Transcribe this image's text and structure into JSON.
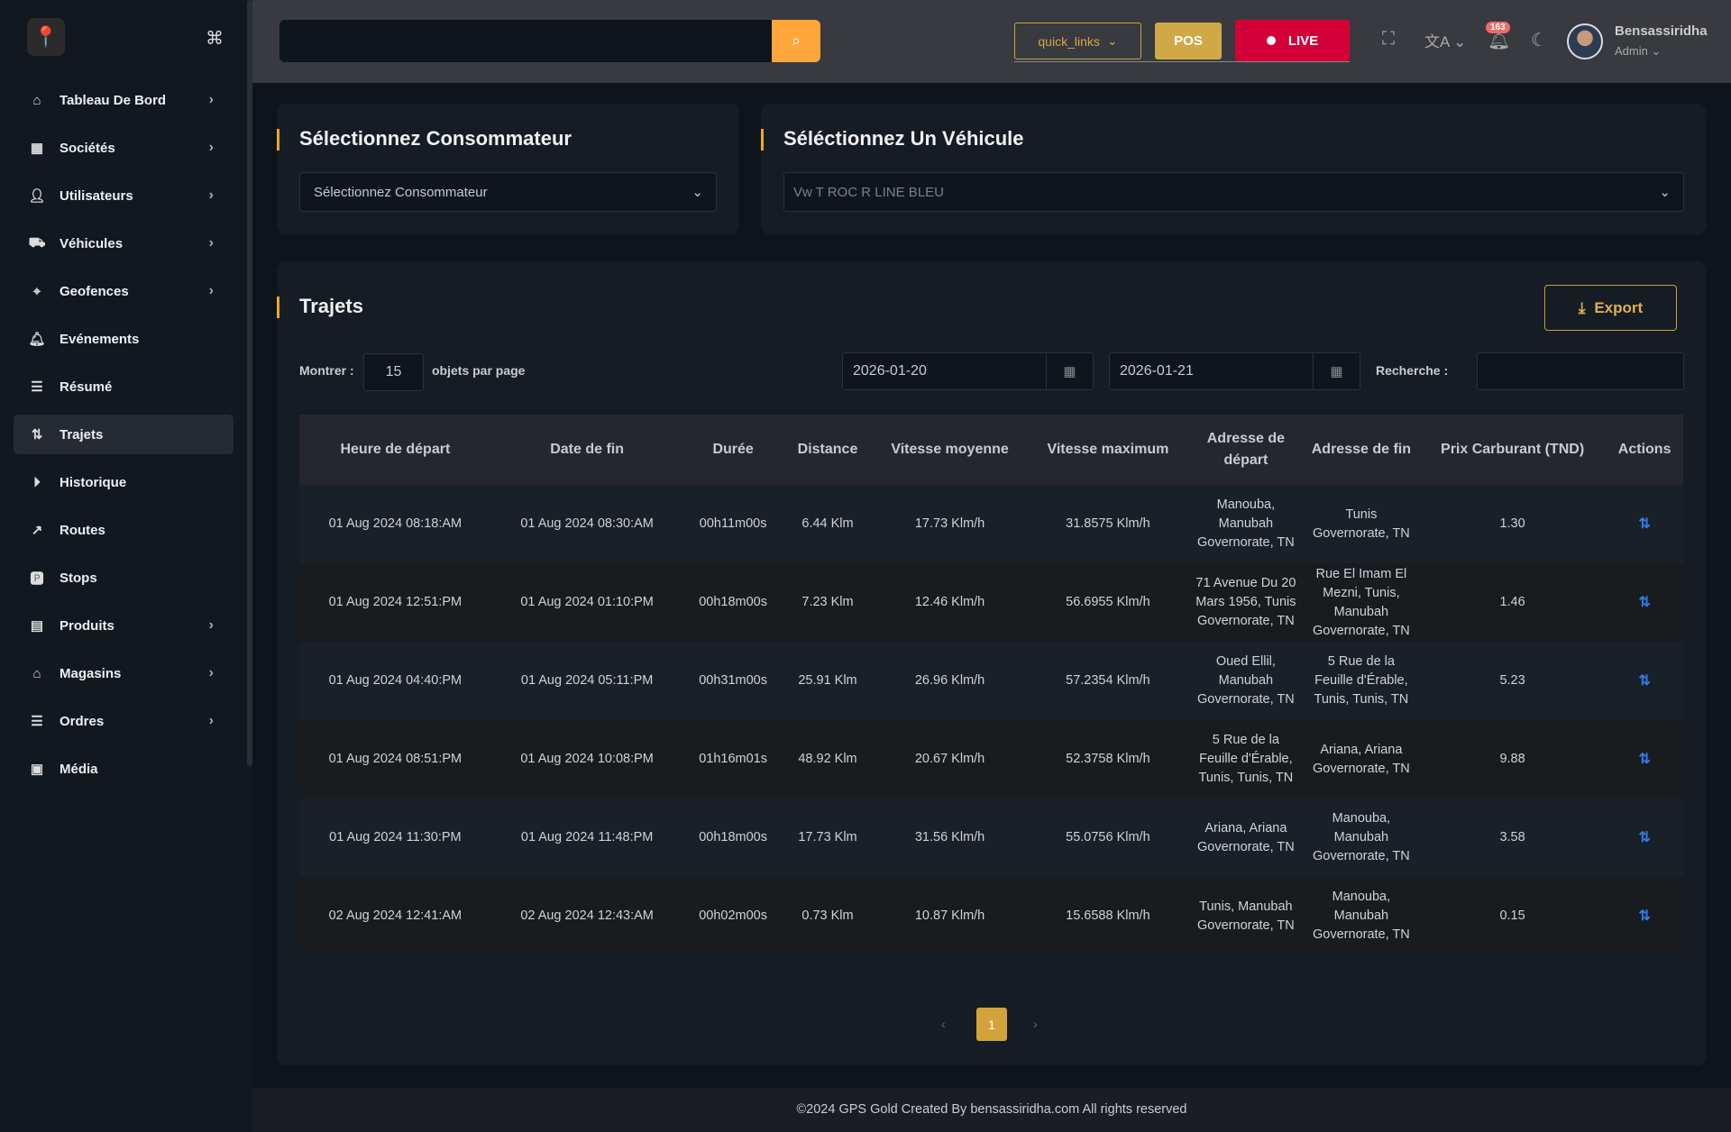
{
  "sidebar": {
    "items": [
      {
        "label": "Tableau De Bord",
        "icon": "home-icon",
        "chevron": true
      },
      {
        "label": "Sociétés",
        "icon": "building-icon",
        "chevron": true
      },
      {
        "label": "Utilisateurs",
        "icon": "users-icon",
        "chevron": true
      },
      {
        "label": "Véhicules",
        "icon": "car-icon",
        "chevron": true
      },
      {
        "label": "Geofences",
        "icon": "map-pin-icon",
        "chevron": true
      },
      {
        "label": "Evénements",
        "icon": "bell-icon",
        "chevron": false
      },
      {
        "label": "Résumé",
        "icon": "list-icon",
        "chevron": false
      },
      {
        "label": "Trajets",
        "icon": "route-icon",
        "chevron": false,
        "active": true
      },
      {
        "label": "Historique",
        "icon": "play-circle-icon",
        "chevron": false
      },
      {
        "label": "Routes",
        "icon": "path-icon",
        "chevron": false
      },
      {
        "label": "Stops",
        "icon": "parking-icon",
        "chevron": false
      },
      {
        "label": "Produits",
        "icon": "archive-icon",
        "chevron": true
      },
      {
        "label": "Magasins",
        "icon": "store-icon",
        "chevron": true
      },
      {
        "label": "Ordres",
        "icon": "list-icon",
        "chevron": true
      },
      {
        "label": "Média",
        "icon": "image-icon",
        "chevron": false
      }
    ]
  },
  "topbar": {
    "quick_links": "quick_links",
    "pos": "POS",
    "live": "LIVE",
    "notifications": "163",
    "user_name": "Bensassiridha",
    "user_role": "Admin"
  },
  "consumer": {
    "title": "Sélectionnez Consommateur",
    "value": "Sélectionnez Consommateur"
  },
  "vehicle": {
    "title": "Séléctionnez Un Véhicule",
    "value": "Vw T ROC R LINE BLEU"
  },
  "trips": {
    "title": "Trajets",
    "export": "Export",
    "show_label": "Montrer :",
    "per_page": "15",
    "per_page_suffix": "objets par page",
    "date_from": "2026-01-20",
    "date_to": "2026-01-21",
    "search_label": "Recherche :",
    "columns": [
      "Heure de départ",
      "Date de fin",
      "Durée",
      "Distance",
      "Vitesse moyenne",
      "Vitesse maximum",
      "Adresse de départ",
      "Adresse de fin",
      "Prix Carburant (TND)",
      "Actions"
    ],
    "rows": [
      [
        "01 Aug 2024 08:18:AM",
        "01 Aug 2024 08:30:AM",
        "00h11m00s",
        "6.44 Klm",
        "17.73 Klm/h",
        "31.8575 Klm/h",
        "Manouba, Manubah Governorate, TN",
        "Tunis Governorate, TN",
        "1.30"
      ],
      [
        "01 Aug 2024 12:51:PM",
        "01 Aug 2024 01:10:PM",
        "00h18m00s",
        "7.23 Klm",
        "12.46 Klm/h",
        "56.6955 Klm/h",
        "71 Avenue Du 20 Mars 1956, Tunis Governorate, TN",
        "Rue El Imam El Mezni, Tunis, Manubah Governorate, TN",
        "1.46"
      ],
      [
        "01 Aug 2024 04:40:PM",
        "01 Aug 2024 05:11:PM",
        "00h31m00s",
        "25.91 Klm",
        "26.96 Klm/h",
        "57.2354 Klm/h",
        "Oued Ellil, Manubah Governorate, TN",
        "5 Rue de la Feuille d'Érable, Tunis, Tunis, TN",
        "5.23"
      ],
      [
        "01 Aug 2024 08:51:PM",
        "01 Aug 2024 10:08:PM",
        "01h16m01s",
        "48.92 Klm",
        "20.67 Klm/h",
        "52.3758 Klm/h",
        "5 Rue de la Feuille d'Érable, Tunis, Tunis, TN",
        "Ariana, Ariana Governorate, TN",
        "9.88"
      ],
      [
        "01 Aug 2024 11:30:PM",
        "01 Aug 2024 11:48:PM",
        "00h18m00s",
        "17.73 Klm",
        "31.56 Klm/h",
        "55.0756 Klm/h",
        "Ariana, Ariana Governorate, TN",
        "Manouba, Manubah Governorate, TN",
        "3.58"
      ],
      [
        "02 Aug 2024 12:41:AM",
        "02 Aug 2024 12:43:AM",
        "00h02m00s",
        "0.73 Klm",
        "10.87 Klm/h",
        "15.6588 Klm/h",
        "Tunis, Manubah Governorate, TN",
        "Manouba, Manubah Governorate, TN",
        "0.15"
      ]
    ],
    "pagination": {
      "current": "1",
      "prev": "‹",
      "next": "›"
    }
  },
  "footer": "©2024 GPS Gold Created By bensassiridha.com All rights reserved",
  "colors": {
    "accent": "#f0a81c",
    "live": "#d30038",
    "search_button": "#ffa53a",
    "action": "#2e7de9"
  }
}
